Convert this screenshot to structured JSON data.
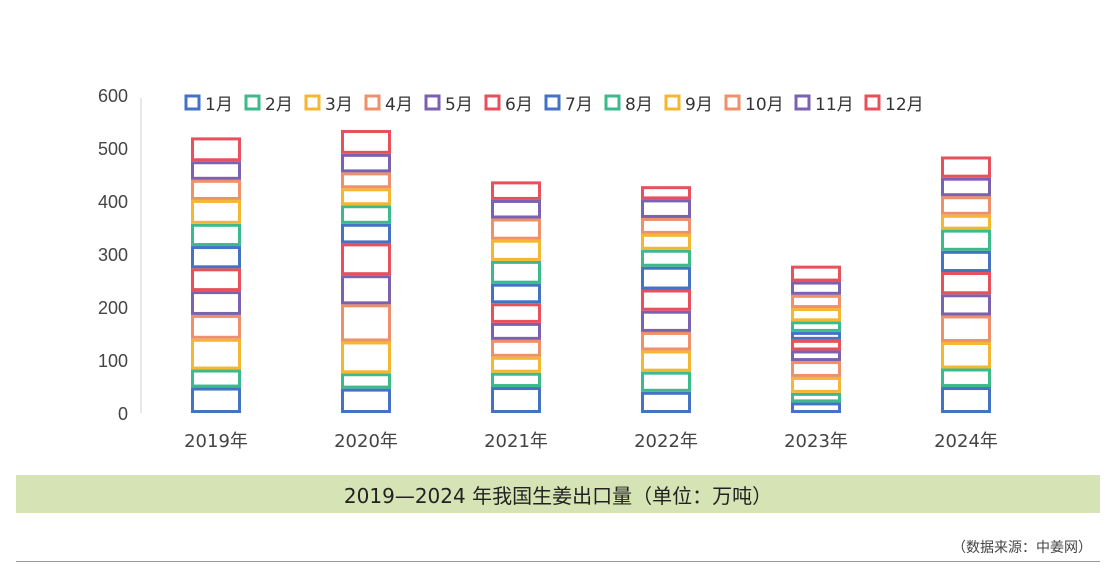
{
  "chart_data": {
    "type": "bar",
    "stacked": true,
    "categories": [
      "2019年",
      "2020年",
      "2021年",
      "2022年",
      "2023年",
      "2024年"
    ],
    "ylim": [
      0,
      600
    ],
    "yticks": [
      0,
      100,
      200,
      300,
      400,
      500,
      600
    ],
    "grid": false,
    "legend_position": "top",
    "series": [
      {
        "name": "1月",
        "color": "#4472c4",
        "values": [
          48,
          46,
          49,
          40,
          20,
          49
        ]
      },
      {
        "name": "2月",
        "color": "#3bba8a",
        "values": [
          34,
          29,
          27,
          38,
          18,
          35
        ]
      },
      {
        "name": "3月",
        "color": "#f5b731",
        "values": [
          58,
          60,
          30,
          40,
          30,
          50
        ]
      },
      {
        "name": "4月",
        "color": "#f0906a",
        "values": [
          45,
          70,
          32,
          35,
          30,
          50
        ]
      },
      {
        "name": "5月",
        "color": "#7b62b0",
        "values": [
          45,
          55,
          32,
          40,
          20,
          40
        ]
      },
      {
        "name": "6月",
        "color": "#e8505b",
        "values": [
          43,
          60,
          37,
          40,
          20,
          42
        ]
      },
      {
        "name": "7月",
        "color": "#4472c4",
        "values": [
          42,
          37,
          37,
          43,
          15,
          40
        ]
      },
      {
        "name": "8月",
        "color": "#3bba8a",
        "values": [
          42,
          35,
          43,
          32,
          20,
          40
        ]
      },
      {
        "name": "9月",
        "color": "#f5b731",
        "values": [
          45,
          32,
          40,
          30,
          25,
          28
        ]
      },
      {
        "name": "10月",
        "color": "#f0906a",
        "values": [
          38,
          30,
          40,
          30,
          25,
          35
        ]
      },
      {
        "name": "11月",
        "color": "#7b62b0",
        "values": [
          35,
          35,
          35,
          35,
          25,
          35
        ]
      },
      {
        "name": "12月",
        "color": "#e8505b",
        "values": [
          45,
          45,
          35,
          25,
          30,
          40
        ]
      }
    ]
  },
  "caption": "2019—2024 年我国生姜出口量（单位：万吨）",
  "source": "（数据来源：中姜网）"
}
